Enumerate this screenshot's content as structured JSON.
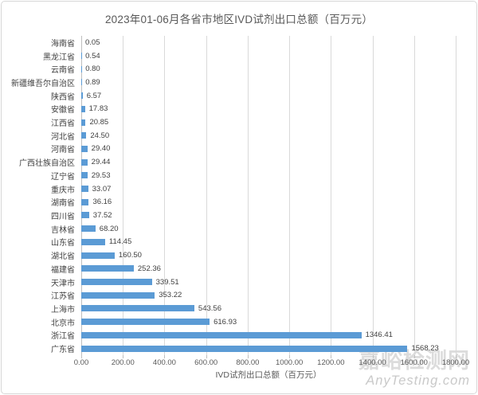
{
  "chart_data": {
    "type": "bar",
    "orientation": "horizontal",
    "title": "2023年01-06月各省市地区IVD试剂出口总额（百万元）",
    "xlabel": "IVD试剂出口总额（百万元）",
    "xlim": [
      0,
      1800
    ],
    "xtick_step": 200,
    "xtick_labels": [
      "0.00",
      "200.00",
      "400.00",
      "600.00",
      "800.00",
      "1000.00",
      "1200.00",
      "1400.00",
      "1600.00",
      "1800.00"
    ],
    "grid": "vertical-only",
    "legend": "none",
    "bar_color": "#5B9BD5",
    "categories": [
      "海南省",
      "黑龙江省",
      "云南省",
      "新疆维吾尔自治区",
      "陕西省",
      "安徽省",
      "江西省",
      "河北省",
      "河南省",
      "广西壮族自治区",
      "辽宁省",
      "重庆市",
      "湖南省",
      "四川省",
      "吉林省",
      "山东省",
      "湖北省",
      "福建省",
      "天津市",
      "江苏省",
      "上海市",
      "北京市",
      "浙江省",
      "广东省"
    ],
    "values": [
      0.05,
      0.54,
      0.8,
      0.89,
      6.57,
      17.83,
      20.85,
      24.5,
      29.4,
      29.44,
      29.53,
      33.07,
      36.16,
      37.52,
      68.2,
      114.45,
      160.5,
      252.36,
      339.51,
      353.22,
      543.56,
      616.93,
      1346.41,
      1568.23
    ]
  },
  "watermark": {
    "line1": "嘉峪检测网",
    "line2": "AnyTesting.com"
  },
  "colors": {
    "bar": "#5B9BD5",
    "gridline": "#D9D9D9",
    "axis_line": "#BFBFBF",
    "title_text": "#595959",
    "label_text": "#3F3F3F",
    "watermark": "#DCDCDC"
  }
}
